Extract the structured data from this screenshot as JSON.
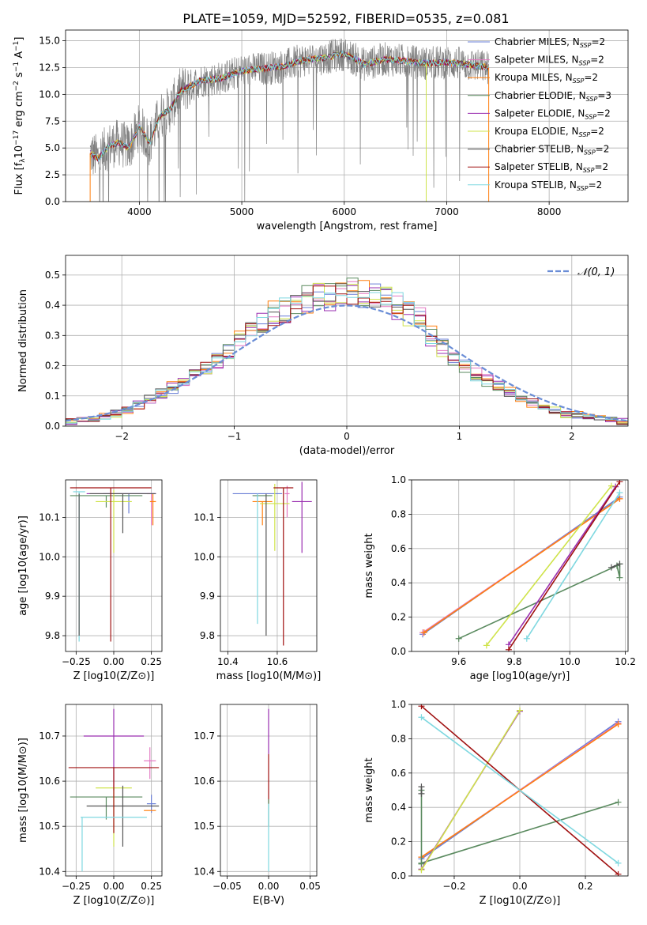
{
  "figure_title": "PLATE=1059, MJD=52592, FIBERID=0535, z=0.081",
  "chart_data": [
    {
      "type": "line",
      "id": "spectrum",
      "xlabel": "wavelength [Angstrom, rest frame]",
      "ylabel_parts": [
        "Flux [f",
        "λ",
        "10",
        "−17",
        " erg cm",
        "−2",
        " s",
        "−1",
        " A",
        "−1",
        "]"
      ],
      "xlim": [
        3280,
        8770
      ],
      "ylim": [
        0,
        16
      ],
      "xticks": [
        4000,
        5000,
        6000,
        7000,
        8000
      ],
      "yticks": [
        0.0,
        2.5,
        5.0,
        7.5,
        10.0,
        12.5,
        15.0
      ],
      "grid": true,
      "legend_position": "top-right",
      "data_shape": {
        "x": [
          3520,
          3600,
          3700,
          3800,
          3900,
          4000,
          4100,
          4200,
          4300,
          4400,
          4500,
          4600,
          4800,
          5000,
          5200,
          5400,
          5600,
          5800,
          6000,
          6200,
          6400,
          6600,
          6800,
          7000,
          7200,
          7410
        ],
        "y": [
          4.5,
          4.0,
          5.2,
          5.5,
          5.0,
          7.0,
          5.5,
          8.0,
          8.6,
          10.3,
          10.8,
          11.3,
          11.5,
          12.2,
          12.4,
          12.6,
          13.2,
          13.4,
          13.8,
          12.8,
          13.3,
          13.1,
          12.9,
          13.0,
          12.8,
          12.5
        ]
      },
      "series": [
        {
          "label": "Chabrier MILES, N",
          "sub": "SSP",
          "tail": "=2",
          "color": "#6a7fd6"
        },
        {
          "label": "Salpeter MILES, N",
          "sub": "SSP",
          "tail": "=2",
          "color": "#e377c2"
        },
        {
          "label": "Kroupa MILES, N",
          "sub": "SSP",
          "tail": "=2",
          "color": "#ff7f0e"
        },
        {
          "label": "Chabrier ELODIE, N",
          "sub": "SSP",
          "tail": "=3",
          "color": "#5a8a5f"
        },
        {
          "label": "Salpeter ELODIE, N",
          "sub": "SSP",
          "tail": "=2",
          "color": "#9a2fb0"
        },
        {
          "label": "Kroupa ELODIE, N",
          "sub": "SSP",
          "tail": "=2",
          "color": "#cfe34a"
        },
        {
          "label": "Chabrier STELIB, N",
          "sub": "SSP",
          "tail": "=2",
          "color": "#555555"
        },
        {
          "label": "Salpeter STELIB, N",
          "sub": "SSP",
          "tail": "=2",
          "color": "#a01010"
        },
        {
          "label": "Kroupa STELIB, N",
          "sub": "SSP",
          "tail": "=2",
          "color": "#7fd8e0"
        }
      ],
      "data_color": "#808080"
    },
    {
      "type": "bar",
      "id": "residuals",
      "xlabel": "(data-model)/error",
      "ylabel": "Normed distribution",
      "xlim": [
        -2.5,
        2.5
      ],
      "ylim": [
        0,
        0.565
      ],
      "xticks": [
        -2,
        -1,
        0,
        1,
        2
      ],
      "yticks": [
        0.0,
        0.1,
        0.2,
        0.3,
        0.4,
        0.5
      ],
      "grid": true,
      "legend_position": "top-right",
      "legend_entry": "𝒩(0, 1)",
      "curve_color": "#6a8dd6",
      "bin_edges_range": [
        -2.5,
        2.5
      ],
      "bin_count": 50,
      "base_histogram": [
        0.015,
        0.02,
        0.025,
        0.03,
        0.04,
        0.055,
        0.07,
        0.09,
        0.11,
        0.13,
        0.14,
        0.17,
        0.2,
        0.22,
        0.25,
        0.3,
        0.32,
        0.34,
        0.37,
        0.38,
        0.4,
        0.42,
        0.44,
        0.43,
        0.44,
        0.45,
        0.44,
        0.43,
        0.42,
        0.4,
        0.38,
        0.36,
        0.3,
        0.26,
        0.23,
        0.2,
        0.17,
        0.15,
        0.13,
        0.11,
        0.09,
        0.075,
        0.06,
        0.05,
        0.04,
        0.035,
        0.03,
        0.025,
        0.02,
        0.015
      ]
    },
    {
      "type": "scatter",
      "id": "age-vs-z",
      "xlabel": "Z [log10(Z/Z⊙)]",
      "ylabel": "age [log10(age/yr)]",
      "xlim": [
        -0.32,
        0.32
      ],
      "ylim": [
        9.76,
        10.195
      ],
      "xticks": [
        -0.25,
        0.0,
        0.25
      ],
      "xticklabels": [
        "−0.25",
        "0.00",
        "0.25"
      ],
      "yticks": [
        9.8,
        9.9,
        10.0,
        10.1
      ],
      "grid": true,
      "points": [
        {
          "color": "#6a7fd6",
          "x": 0.1,
          "y": 10.16,
          "xerr": 0.17,
          "yerr_lo": 0.05,
          "yerr_hi": 0.0
        },
        {
          "color": "#e377c2",
          "x": 0.25,
          "y": 10.16,
          "xerr": 0.03,
          "yerr_lo": 0.08,
          "yerr_hi": 0.0
        },
        {
          "color": "#ff7f0e",
          "x": 0.26,
          "y": 10.14,
          "xerr": 0.02,
          "yerr_lo": 0.06,
          "yerr_hi": 0.02
        },
        {
          "color": "#5a8a5f",
          "x": -0.05,
          "y": 10.155,
          "xerr": 0.24,
          "yerr_lo": 0.03,
          "yerr_hi": 0.0
        },
        {
          "color": "#9a2fb0",
          "x": 0.05,
          "y": 10.16,
          "xerr": 0.23,
          "yerr_lo": 0.0,
          "yerr_hi": 0.0
        },
        {
          "color": "#cfe34a",
          "x": 0.0,
          "y": 10.14,
          "xerr": 0.12,
          "yerr_lo": 0.13,
          "yerr_hi": 0.03
        },
        {
          "color": "#555555",
          "x": 0.06,
          "y": 10.16,
          "xerr": 0.22,
          "yerr_lo": 0.1,
          "yerr_hi": 0.0
        },
        {
          "color": "#a01010",
          "x": -0.02,
          "y": 10.175,
          "xerr": 0.27,
          "yerr_lo": 0.39,
          "yerr_hi": 0.0
        },
        {
          "color": "#7fd8e0",
          "x": -0.23,
          "y": 10.165,
          "xerr": 0.04,
          "yerr_lo": 0.38,
          "yerr_hi": 0.0
        },
        {
          "color": "#555555",
          "x": -0.23,
          "y": 10.16,
          "xerr": 0.0,
          "yerr_lo": 0.36,
          "yerr_hi": 0.0
        }
      ]
    },
    {
      "type": "scatter",
      "id": "age-vs-mass",
      "xlabel": "mass [log10(M/M⊙)]",
      "xlim": [
        10.37,
        10.76
      ],
      "ylim": [
        9.76,
        10.195
      ],
      "xticks": [
        10.4,
        10.6
      ],
      "yticks": [
        9.8,
        9.9,
        10.0,
        10.1
      ],
      "grid": true,
      "points": [
        {
          "color": "#6a7fd6",
          "x": 10.52,
          "y": 10.16,
          "xerr": 0.1,
          "yerr_lo": 0.02,
          "yerr_hi": 0.0
        },
        {
          "color": "#e377c2",
          "x": 10.64,
          "y": 10.16,
          "xerr": 0.01,
          "yerr_lo": 0.06,
          "yerr_hi": 0.02
        },
        {
          "color": "#ff7f0e",
          "x": 10.54,
          "y": 10.14,
          "xerr": 0.04,
          "yerr_lo": 0.06,
          "yerr_hi": 0.0
        },
        {
          "color": "#5a8a5f",
          "x": 10.54,
          "y": 10.155,
          "xerr": 0.04,
          "yerr_lo": 0.0,
          "yerr_hi": 0.0
        },
        {
          "color": "#9a2fb0",
          "x": 10.7,
          "y": 10.14,
          "xerr": 0.04,
          "yerr_lo": 0.13,
          "yerr_hi": 0.05
        },
        {
          "color": "#cfe34a",
          "x": 10.59,
          "y": 10.135,
          "xerr": 0.06,
          "yerr_lo": 0.12,
          "yerr_hi": 0.05
        },
        {
          "color": "#555555",
          "x": 10.555,
          "y": 10.16,
          "xerr": 0.0,
          "yerr_lo": 0.36,
          "yerr_hi": 0.0
        },
        {
          "color": "#a01010",
          "x": 10.625,
          "y": 10.175,
          "xerr": 0.04,
          "yerr_lo": 0.4,
          "yerr_hi": 0.0
        },
        {
          "color": "#7fd8e0",
          "x": 10.52,
          "y": 10.16,
          "xerr": 0.0,
          "yerr_lo": 0.33,
          "yerr_hi": 0.0
        }
      ]
    },
    {
      "type": "line",
      "id": "mass-weight-vs-age",
      "xlabel": "age [log10(age/yr)]",
      "ylabel": "mass weight",
      "xlim": [
        9.43,
        10.21
      ],
      "ylim": [
        0.0,
        1.0
      ],
      "xticks": [
        9.6,
        9.8,
        10.0,
        10.2
      ],
      "yticks": [
        0.0,
        0.2,
        0.4,
        0.6,
        0.8,
        1.0
      ],
      "grid": true,
      "series": [
        {
          "color": "#6a7fd6",
          "x": [
            9.47,
            10.18
          ],
          "y": [
            0.1,
            0.9
          ]
        },
        {
          "color": "#e377c2",
          "x": [
            9.47,
            10.18
          ],
          "y": [
            0.11,
            0.89
          ]
        },
        {
          "color": "#ff7f0e",
          "x": [
            9.475,
            10.18
          ],
          "y": [
            0.11,
            0.89
          ]
        },
        {
          "color": "#5a8a5f",
          "x": [
            9.6,
            10.17,
            10.18,
            10.18
          ],
          "y": [
            0.075,
            0.5,
            0.43,
            0.51
          ]
        },
        {
          "color": "#9a2fb0",
          "x": [
            9.78,
            10.165
          ],
          "y": [
            0.04,
            0.96
          ]
        },
        {
          "color": "#cfe34a",
          "x": [
            9.7,
            10.15
          ],
          "y": [
            0.035,
            0.965
          ]
        },
        {
          "color": "#555555",
          "x": [
            10.15,
            10.18
          ],
          "y": [
            0.49,
            0.51
          ]
        },
        {
          "color": "#a01010",
          "x": [
            9.78,
            10.18
          ],
          "y": [
            0.01,
            0.99
          ]
        },
        {
          "color": "#7fd8e0",
          "x": [
            9.845,
            10.18
          ],
          "y": [
            0.075,
            0.925
          ]
        }
      ]
    },
    {
      "type": "scatter",
      "id": "mass-vs-z",
      "xlabel": "Z [log10(Z/Z⊙)]",
      "ylabel": "mass [log10(M/M⊙)]",
      "xlim": [
        -0.32,
        0.32
      ],
      "ylim": [
        10.39,
        10.77
      ],
      "xticks": [
        -0.25,
        0.0,
        0.25
      ],
      "xticklabels": [
        "−0.25",
        "0.00",
        "0.25"
      ],
      "yticks": [
        10.4,
        10.5,
        10.6,
        10.7
      ],
      "grid": true,
      "points": [
        {
          "color": "#6a7fd6",
          "x": 0.25,
          "y": 10.55,
          "xerr": 0.03,
          "yerr_lo": 0.02,
          "yerr_hi": 0.02
        },
        {
          "color": "#e377c2",
          "x": 0.24,
          "y": 10.645,
          "xerr": 0.04,
          "yerr_lo": 0.04,
          "yerr_hi": 0.03
        },
        {
          "color": "#ff7f0e",
          "x": 0.24,
          "y": 10.535,
          "xerr": 0.04,
          "yerr_lo": 0.0,
          "yerr_hi": 0.0
        },
        {
          "color": "#5a8a5f",
          "x": -0.05,
          "y": 10.565,
          "xerr": 0.24,
          "yerr_lo": 0.05,
          "yerr_hi": 0.0
        },
        {
          "color": "#9a2fb0",
          "x": 0.0,
          "y": 10.7,
          "xerr": 0.2,
          "yerr_lo": 0.12,
          "yerr_hi": 0.06
        },
        {
          "color": "#cfe34a",
          "x": 0.0,
          "y": 10.585,
          "xerr": 0.12,
          "yerr_lo": 0.13,
          "yerr_hi": 0.0
        },
        {
          "color": "#555555",
          "x": 0.06,
          "y": 10.545,
          "xerr": 0.24,
          "yerr_lo": 0.09,
          "yerr_hi": 0.045
        },
        {
          "color": "#a01010",
          "x": 0.0,
          "y": 10.63,
          "xerr": 0.3,
          "yerr_lo": 0.145,
          "yerr_hi": 0.0
        },
        {
          "color": "#7fd8e0",
          "x": 0.0,
          "y": 10.52,
          "xerr": 0.22,
          "yerr_lo": 0.0,
          "yerr_hi": 0.0
        },
        {
          "color": "#7fd8e0",
          "x": -0.21,
          "y": 10.52,
          "xerr": 0.0,
          "yerr_lo": 0.12,
          "yerr_hi": 0.0
        }
      ]
    },
    {
      "type": "scatter",
      "id": "mass-vs-ebv",
      "xlabel": "E(B-V)",
      "xlim": [
        -0.058,
        0.058
      ],
      "ylim": [
        10.39,
        10.77
      ],
      "xticks": [
        -0.05,
        0.0,
        0.05
      ],
      "xticklabels": [
        "−0.05",
        "0.00",
        "0.05"
      ],
      "yticks": [
        10.4,
        10.5,
        10.6,
        10.7
      ],
      "grid": true,
      "points": [
        {
          "color": "#9a2fb0",
          "x": 0.0,
          "y": 10.7,
          "xerr": 0.0,
          "yerr_lo": 0.04,
          "yerr_hi": 0.06
        },
        {
          "color": "#a01010",
          "x": 0.0,
          "y": 10.63,
          "xerr": 0.0,
          "yerr_lo": 0.08,
          "yerr_hi": 0.03
        },
        {
          "color": "#5a8a5f",
          "x": 0.0,
          "y": 10.56,
          "xerr": 0.0,
          "yerr_lo": 0.06,
          "yerr_hi": 0.0
        },
        {
          "color": "#7fd8e0",
          "x": 0.0,
          "y": 10.5,
          "xerr": 0.0,
          "yerr_lo": 0.1,
          "yerr_hi": 0.05
        }
      ]
    },
    {
      "type": "line",
      "id": "mass-weight-vs-z",
      "xlabel": "Z [log10(Z/Z⊙)]",
      "ylabel": "mass weight",
      "xlim": [
        -0.33,
        0.33
      ],
      "ylim": [
        0.0,
        1.0
      ],
      "xticks": [
        -0.2,
        0.0,
        0.2
      ],
      "xticklabels": [
        "−0.2",
        "0.0",
        "0.2"
      ],
      "yticks": [
        0.0,
        0.2,
        0.4,
        0.6,
        0.8,
        1.0
      ],
      "grid": true,
      "series": [
        {
          "color": "#6a7fd6",
          "x": [
            -0.3,
            0.3
          ],
          "y": [
            0.1,
            0.9
          ]
        },
        {
          "color": "#e377c2",
          "x": [
            -0.3,
            0.3
          ],
          "y": [
            0.11,
            0.89
          ]
        },
        {
          "color": "#ff7f0e",
          "x": [
            -0.3,
            0.3
          ],
          "y": [
            0.11,
            0.885
          ]
        },
        {
          "color": "#5a8a5f",
          "x": [
            -0.3,
            0.3
          ],
          "y": [
            0.075,
            0.43
          ]
        },
        {
          "color": "#5a8a5f",
          "x": [
            -0.3,
            -0.3
          ],
          "y": [
            0.07,
            0.5
          ]
        },
        {
          "color": "#555555",
          "x": [
            -0.3,
            -0.3
          ],
          "y": [
            0.48,
            0.52
          ]
        },
        {
          "color": "#9a2fb0",
          "x": [
            -0.3,
            0.0
          ],
          "y": [
            0.04,
            0.96
          ]
        },
        {
          "color": "#cfe34a",
          "x": [
            -0.3,
            0.0
          ],
          "y": [
            0.035,
            0.965
          ]
        },
        {
          "color": "#a01010",
          "x": [
            -0.3,
            0.3
          ],
          "y": [
            0.99,
            0.01
          ]
        },
        {
          "color": "#7fd8e0",
          "x": [
            -0.3,
            0.3
          ],
          "y": [
            0.925,
            0.075
          ]
        }
      ]
    }
  ]
}
